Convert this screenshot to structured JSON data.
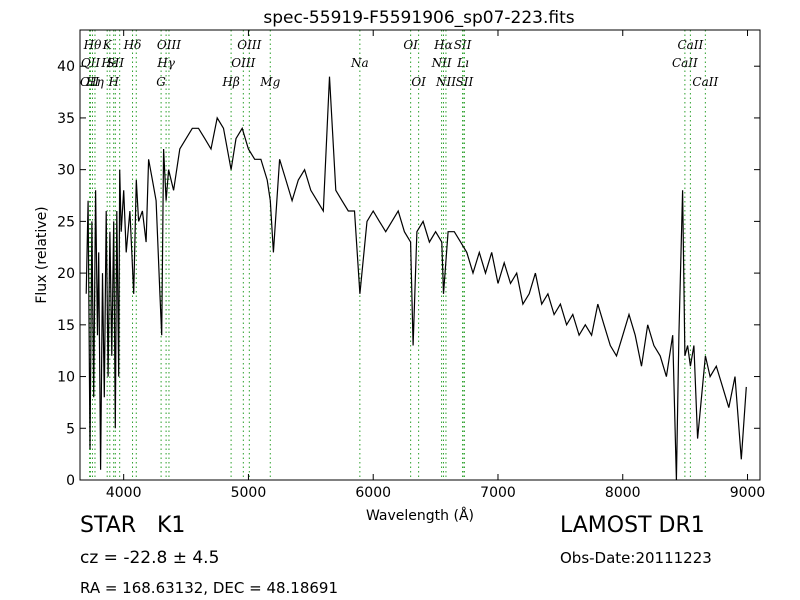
{
  "chart_data": {
    "type": "line",
    "title": "spec-55919-F5591906_sp07-223.fits",
    "xlabel": "Wavelength (Å)",
    "ylabel": "Flux (relative)",
    "xlim": [
      3650,
      9100
    ],
    "ylim": [
      0,
      43.5
    ],
    "xticks": [
      4000,
      5000,
      6000,
      7000,
      8000,
      9000
    ],
    "yticks": [
      0,
      5,
      10,
      15,
      20,
      25,
      30,
      35,
      40
    ],
    "grid": false,
    "line_color": "#000000",
    "marker_color": "#2ca02c",
    "series": [
      {
        "x": [
          3700,
          3715,
          3730,
          3745,
          3760,
          3775,
          3790,
          3800,
          3815,
          3830,
          3845,
          3860,
          3875,
          3890,
          3905,
          3920,
          3933,
          3945,
          3960,
          3968,
          3980,
          4000,
          4020,
          4050,
          4080,
          4101,
          4120,
          4150,
          4180,
          4200,
          4230,
          4260,
          4290,
          4305,
          4320,
          4340,
          4360,
          4400,
          4450,
          4500,
          4550,
          4600,
          4650,
          4700,
          4750,
          4800,
          4861,
          4900,
          4950,
          5000,
          5050,
          5100,
          5150,
          5175,
          5200,
          5250,
          5300,
          5350,
          5400,
          5450,
          5500,
          5550,
          5600,
          5650,
          5700,
          5750,
          5800,
          5850,
          5893,
          5950,
          6000,
          6050,
          6100,
          6150,
          6200,
          6250,
          6300,
          6320,
          6350,
          6400,
          6450,
          6500,
          6550,
          6563,
          6600,
          6650,
          6700,
          6750,
          6800,
          6850,
          6900,
          6950,
          7000,
          7050,
          7100,
          7150,
          7200,
          7250,
          7300,
          7350,
          7400,
          7450,
          7500,
          7550,
          7600,
          7650,
          7700,
          7750,
          7800,
          7850,
          7900,
          7950,
          8000,
          8050,
          8100,
          8150,
          8200,
          8250,
          8300,
          8350,
          8400,
          8430,
          8450,
          8480,
          8498,
          8520,
          8542,
          8570,
          8600,
          8662,
          8700,
          8750,
          8800,
          8850,
          8900,
          8950,
          8990
        ],
        "y": [
          18,
          27,
          3,
          25,
          8,
          28,
          14,
          22,
          1,
          20,
          8,
          26,
          10,
          24,
          12,
          25,
          5,
          26,
          10,
          30,
          24,
          28,
          22,
          26,
          18,
          29,
          25,
          26,
          23,
          31,
          29,
          27,
          18,
          14,
          32,
          27,
          30,
          28,
          32,
          33,
          34,
          34,
          33,
          32,
          35,
          34,
          30,
          33,
          34,
          32,
          31,
          31,
          29,
          27,
          22,
          31,
          29,
          27,
          29,
          30,
          28,
          27,
          26,
          39,
          28,
          27,
          26,
          26,
          18,
          25,
          26,
          25,
          24,
          25,
          26,
          24,
          23,
          13,
          24,
          25,
          23,
          24,
          23,
          18,
          24,
          24,
          23,
          22,
          20,
          22,
          20,
          22,
          19,
          21,
          19,
          20,
          17,
          18,
          20,
          17,
          18,
          16,
          17,
          15,
          16,
          14,
          15,
          14,
          17,
          15,
          13,
          12,
          14,
          16,
          14,
          11,
          15,
          13,
          12,
          10,
          14,
          0,
          14,
          28,
          12,
          13,
          11,
          13,
          4,
          12,
          10,
          11,
          9,
          7,
          10,
          2,
          9
        ]
      }
    ],
    "line_markers": [
      {
        "wave": 3727,
        "label": "OII",
        "row": 2
      },
      {
        "wave": 3734,
        "label": "QII",
        "row": 1
      },
      {
        "wave": 3750,
        "label": "Hθ",
        "row": 0
      },
      {
        "wave": 3770,
        "label": "Hη",
        "row": 2
      },
      {
        "wave": 3868,
        "label": "K",
        "row": 0
      },
      {
        "wave": 3889,
        "label": "Hε",
        "row": 1
      },
      {
        "wave": 3920,
        "label": "H",
        "row": 2
      },
      {
        "wave": 3933,
        "label": "SII",
        "row": 1
      },
      {
        "wave": 3968,
        "label": "",
        "row": 0
      },
      {
        "wave": 4071,
        "label": "Hδ",
        "row": 0
      },
      {
        "wave": 4101,
        "label": "",
        "row": 0
      },
      {
        "wave": 4300,
        "label": "G",
        "row": 2
      },
      {
        "wave": 4340,
        "label": "Hγ",
        "row": 1
      },
      {
        "wave": 4363,
        "label": "OIII",
        "row": 0
      },
      {
        "wave": 4861,
        "label": "Hβ",
        "row": 2
      },
      {
        "wave": 4959,
        "label": "OIII",
        "row": 1
      },
      {
        "wave": 5007,
        "label": "OIII",
        "row": 0
      },
      {
        "wave": 5175,
        "label": "Mg",
        "row": 2
      },
      {
        "wave": 5893,
        "label": "Na",
        "row": 1
      },
      {
        "wave": 6300,
        "label": "OI",
        "row": 0
      },
      {
        "wave": 6364,
        "label": "OI",
        "row": 2
      },
      {
        "wave": 6548,
        "label": "NII",
        "row": 1
      },
      {
        "wave": 6563,
        "label": "Hα",
        "row": 0
      },
      {
        "wave": 6583,
        "label": "NII",
        "row": 2
      },
      {
        "wave": 6716,
        "label": "SII",
        "row": 0
      },
      {
        "wave": 6731,
        "label": "SII",
        "row": 2
      },
      {
        "wave": 6720,
        "label": "Lı",
        "row": 1
      },
      {
        "wave": 8498,
        "label": "CaII",
        "row": 1
      },
      {
        "wave": 8542,
        "label": "CaII",
        "row": 0
      },
      {
        "wave": 8662,
        "label": "CaII",
        "row": 2
      }
    ]
  },
  "footer": {
    "object_class": "STAR",
    "subclass": "K1",
    "survey": "LAMOST DR1",
    "redshift": "cz = -22.8 ± 4.5",
    "obs_date": "Obs-Date:20111223",
    "coords": "RA = 168.63132, DEC = 48.18691"
  }
}
